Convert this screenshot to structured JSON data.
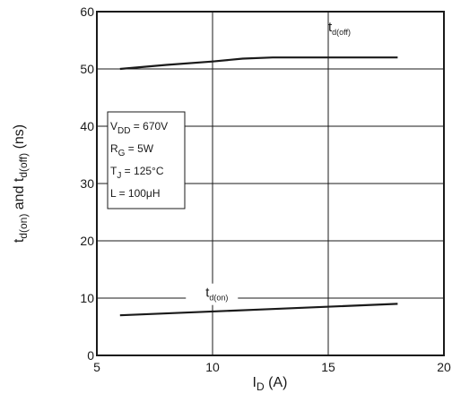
{
  "chart_data": {
    "type": "line",
    "xlim": [
      5,
      20
    ],
    "ylim": [
      0,
      60
    ],
    "x_ticks": [
      5,
      10,
      15,
      20
    ],
    "y_ticks": [
      0,
      10,
      20,
      30,
      40,
      50,
      60
    ],
    "grid": true,
    "xlabel": {
      "main": "I",
      "sub": "D",
      "tail": " (A)"
    },
    "ylabel": {
      "pre": "t",
      "sub1": "d(on)",
      "mid": " and t",
      "sub2": "d(off)",
      "tail": " (ns)"
    },
    "series": [
      {
        "name": {
          "main": "t",
          "sub": "d(off)"
        },
        "x": [
          6,
          8,
          10,
          11.3,
          12.6,
          15,
          18
        ],
        "y": [
          50,
          50.7,
          51.3,
          51.8,
          52,
          52,
          52
        ]
      },
      {
        "name": {
          "main": "t",
          "sub": "d(on)"
        },
        "x": [
          6,
          12,
          18
        ],
        "y": [
          7,
          8,
          9
        ]
      }
    ],
    "conditions": [
      {
        "main": "V",
        "sub": "DD",
        "tail": " = 670V"
      },
      {
        "main": "R",
        "sub": "G",
        "tail": " = 5W"
      },
      {
        "main": "T",
        "sub": "J",
        "tail": " = 125°C"
      },
      {
        "main": "L",
        "sub": "",
        "tail": " = 100μH"
      }
    ]
  }
}
